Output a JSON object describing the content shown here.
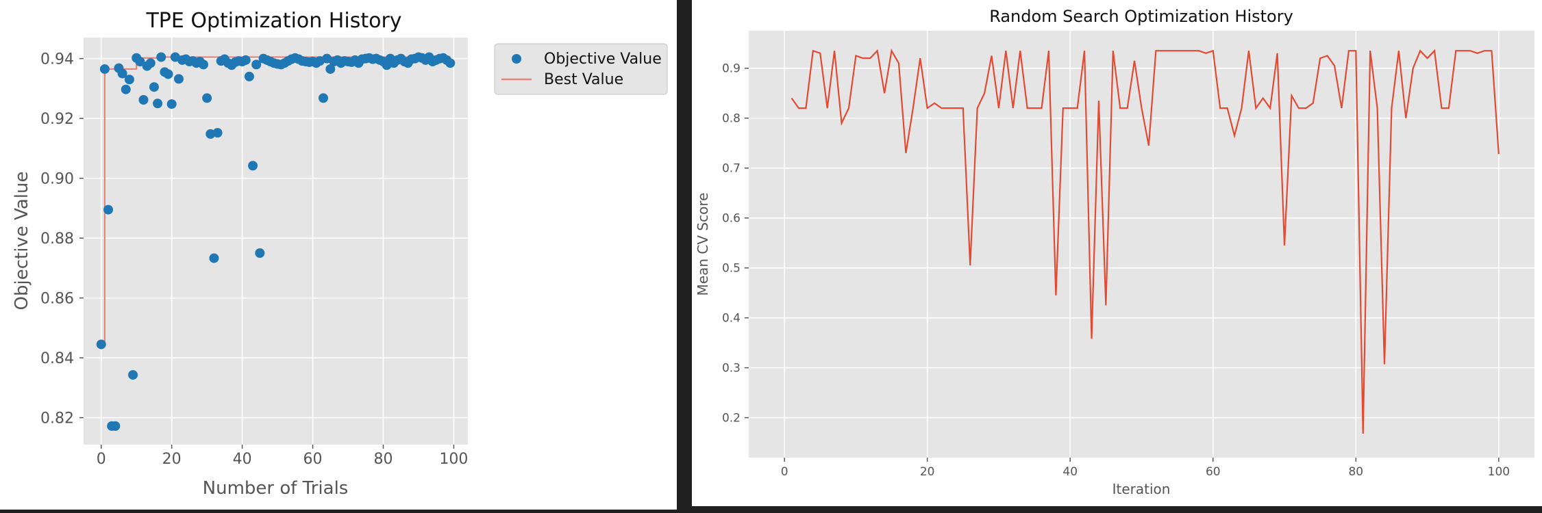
{
  "chart_data": [
    {
      "type": "scatter",
      "title": "TPE Optimization History",
      "xlabel": "Number of Trials",
      "ylabel": "Objective Value",
      "xlim": [
        -5,
        104
      ],
      "ylim": [
        0.811,
        0.947
      ],
      "xticks": [
        0,
        20,
        40,
        60,
        80,
        100
      ],
      "yticks": [
        0.82,
        0.84,
        0.86,
        0.88,
        0.9,
        0.92,
        0.94
      ],
      "ytick_labels": [
        "0.82",
        "0.84",
        "0.86",
        "0.88",
        "0.90",
        "0.92",
        "0.94"
      ],
      "grid": true,
      "legend_position": "outside-top-right",
      "series": [
        {
          "name": "Objective Value",
          "kind": "scatter",
          "color": "#1f77b4",
          "x": [
            0,
            1,
            2,
            3,
            4,
            5,
            6,
            7,
            8,
            9,
            10,
            11,
            12,
            13,
            14,
            15,
            16,
            17,
            18,
            19,
            20,
            21,
            22,
            23,
            24,
            25,
            26,
            27,
            28,
            29,
            30,
            31,
            32,
            33,
            34,
            35,
            36,
            37,
            38,
            39,
            40,
            41,
            42,
            43,
            44,
            45,
            46,
            47,
            48,
            49,
            50,
            51,
            52,
            53,
            54,
            55,
            56,
            57,
            58,
            59,
            60,
            61,
            62,
            63,
            64,
            65,
            66,
            67,
            68,
            69,
            70,
            71,
            72,
            73,
            74,
            75,
            76,
            77,
            78,
            79,
            80,
            81,
            82,
            83,
            84,
            85,
            86,
            87,
            88,
            89,
            90,
            91,
            92,
            93,
            94,
            95,
            96,
            97,
            98,
            99
          ],
          "y": [
            0.8445,
            0.9365,
            0.8895,
            0.8172,
            0.8172,
            0.9368,
            0.935,
            0.9297,
            0.933,
            0.8343,
            0.9402,
            0.939,
            0.9262,
            0.9375,
            0.9385,
            0.9305,
            0.925,
            0.9405,
            0.9355,
            0.9348,
            0.9248,
            0.9405,
            0.9332,
            0.9395,
            0.9398,
            0.939,
            0.9392,
            0.9385,
            0.939,
            0.938,
            0.9268,
            0.9148,
            0.8733,
            0.9152,
            0.9392,
            0.9398,
            0.9385,
            0.9378,
            0.9388,
            0.9392,
            0.939,
            0.9395,
            0.934,
            0.9042,
            0.938,
            0.875,
            0.94,
            0.9395,
            0.939,
            0.9385,
            0.9382,
            0.938,
            0.9385,
            0.9392,
            0.9398,
            0.9402,
            0.9398,
            0.9392,
            0.939,
            0.9388,
            0.939,
            0.9385,
            0.9392,
            0.9268,
            0.94,
            0.9365,
            0.939,
            0.9395,
            0.9385,
            0.9392,
            0.939,
            0.9388,
            0.9395,
            0.9385,
            0.9398,
            0.94,
            0.9402,
            0.9398,
            0.94,
            0.9395,
            0.939,
            0.9378,
            0.94,
            0.9385,
            0.9395,
            0.94,
            0.939,
            0.9385,
            0.9398,
            0.94,
            0.9405,
            0.9402,
            0.9395,
            0.9405,
            0.939,
            0.9395,
            0.94,
            0.9402,
            0.9395,
            0.9385
          ]
        },
        {
          "name": "Best Value",
          "kind": "step-line",
          "color": "#e8837a",
          "x": [
            0,
            1,
            10,
            17,
            21,
            99
          ],
          "y": [
            0.8445,
            0.9365,
            0.9402,
            0.9405,
            0.9405,
            0.9405
          ]
        }
      ]
    },
    {
      "type": "line",
      "title": "Random Search Optimization History",
      "xlabel": "Iteration",
      "ylabel": "Mean CV Score",
      "xlim": [
        -5,
        105
      ],
      "ylim": [
        0.12,
        0.975
      ],
      "xticks": [
        0,
        20,
        40,
        60,
        80,
        100
      ],
      "yticks": [
        0.2,
        0.3,
        0.4,
        0.5,
        0.6,
        0.7,
        0.8,
        0.9
      ],
      "ytick_labels": [
        "0.2",
        "0.3",
        "0.4",
        "0.5",
        "0.6",
        "0.7",
        "0.8",
        "0.9"
      ],
      "grid": true,
      "series": [
        {
          "color": "#e24a33",
          "x": [
            1,
            2,
            3,
            4,
            5,
            6,
            7,
            8,
            9,
            10,
            11,
            12,
            13,
            14,
            15,
            16,
            17,
            18,
            19,
            20,
            21,
            22,
            23,
            24,
            25,
            26,
            27,
            28,
            29,
            30,
            31,
            32,
            33,
            34,
            35,
            36,
            37,
            38,
            39,
            40,
            41,
            42,
            43,
            44,
            45,
            46,
            47,
            48,
            49,
            50,
            51,
            52,
            53,
            54,
            55,
            56,
            57,
            58,
            59,
            60,
            61,
            62,
            63,
            64,
            65,
            66,
            67,
            68,
            69,
            70,
            71,
            72,
            73,
            74,
            75,
            76,
            77,
            78,
            79,
            80,
            81,
            82,
            83,
            84,
            85,
            86,
            87,
            88,
            89,
            90,
            91,
            92,
            93,
            94,
            95,
            96,
            97,
            98,
            99,
            100
          ],
          "y": [
            0.84,
            0.82,
            0.82,
            0.935,
            0.93,
            0.82,
            0.935,
            0.79,
            0.82,
            0.925,
            0.92,
            0.92,
            0.935,
            0.85,
            0.935,
            0.91,
            0.73,
            0.82,
            0.92,
            0.82,
            0.83,
            0.82,
            0.82,
            0.82,
            0.82,
            0.505,
            0.82,
            0.85,
            0.925,
            0.82,
            0.935,
            0.82,
            0.935,
            0.82,
            0.82,
            0.82,
            0.935,
            0.445,
            0.82,
            0.82,
            0.82,
            0.935,
            0.358,
            0.835,
            0.425,
            0.935,
            0.82,
            0.82,
            0.915,
            0.82,
            0.745,
            0.935,
            0.935,
            0.935,
            0.935,
            0.935,
            0.935,
            0.935,
            0.93,
            0.935,
            0.82,
            0.82,
            0.765,
            0.82,
            0.935,
            0.82,
            0.84,
            0.82,
            0.93,
            0.545,
            0.845,
            0.82,
            0.82,
            0.83,
            0.92,
            0.925,
            0.905,
            0.82,
            0.935,
            0.935,
            0.168,
            0.935,
            0.82,
            0.307,
            0.82,
            0.935,
            0.8,
            0.9,
            0.935,
            0.92,
            0.935,
            0.82,
            0.82,
            0.935,
            0.935,
            0.935,
            0.93,
            0.935,
            0.935,
            0.728
          ]
        }
      ]
    }
  ]
}
